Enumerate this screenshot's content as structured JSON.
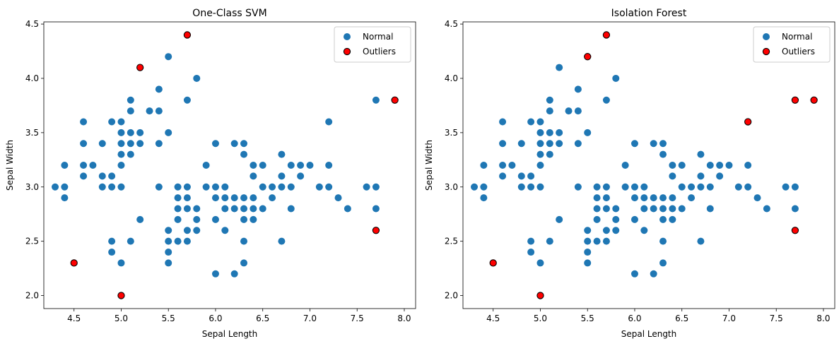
{
  "chart_data": [
    {
      "type": "scatter",
      "title": "One-Class SVM",
      "xlabel": "Sepal Length",
      "ylabel": "Sepal Width",
      "xlim": [
        4.18,
        8.12
      ],
      "ylim": [
        1.88,
        4.52
      ],
      "xticks": [
        4.5,
        5.0,
        5.5,
        6.0,
        6.5,
        7.0,
        7.5,
        8.0
      ],
      "xtick_labels": [
        "4.5",
        "5.0",
        "5.5",
        "6.0",
        "6.5",
        "7.0",
        "7.5",
        "8.0"
      ],
      "yticks": [
        2.0,
        2.5,
        3.0,
        3.5,
        4.0,
        4.5
      ],
      "ytick_labels": [
        "2.0",
        "2.5",
        "3.0",
        "3.5",
        "4.0",
        "4.5"
      ],
      "grid": false,
      "legend_position": "top-right",
      "series": [
        {
          "name": "Normal",
          "color": "#1f77b4",
          "points": [
            [
              4.3,
              3.0
            ],
            [
              4.4,
              3.2
            ],
            [
              4.4,
              3.0
            ],
            [
              4.4,
              2.9
            ],
            [
              4.6,
              3.6
            ],
            [
              4.6,
              3.4
            ],
            [
              4.6,
              3.2
            ],
            [
              4.6,
              3.1
            ],
            [
              4.7,
              3.2
            ],
            [
              4.8,
              3.4
            ],
            [
              4.8,
              3.1
            ],
            [
              4.8,
              3.0
            ],
            [
              4.9,
              3.6
            ],
            [
              4.9,
              3.1
            ],
            [
              4.9,
              3.0
            ],
            [
              4.9,
              2.5
            ],
            [
              4.9,
              2.4
            ],
            [
              5.0,
              3.6
            ],
            [
              5.0,
              3.5
            ],
            [
              5.0,
              3.4
            ],
            [
              5.0,
              3.3
            ],
            [
              5.0,
              3.2
            ],
            [
              5.0,
              3.0
            ],
            [
              5.0,
              2.3
            ],
            [
              5.1,
              3.8
            ],
            [
              5.1,
              3.7
            ],
            [
              5.1,
              3.5
            ],
            [
              5.1,
              3.4
            ],
            [
              5.1,
              3.3
            ],
            [
              5.1,
              2.5
            ],
            [
              5.2,
              3.5
            ],
            [
              5.2,
              3.4
            ],
            [
              5.2,
              2.7
            ],
            [
              5.3,
              3.7
            ],
            [
              5.4,
              3.9
            ],
            [
              5.4,
              3.7
            ],
            [
              5.4,
              3.4
            ],
            [
              5.4,
              3.0
            ],
            [
              5.5,
              4.2
            ],
            [
              5.5,
              3.5
            ],
            [
              5.5,
              2.6
            ],
            [
              5.5,
              2.5
            ],
            [
              5.5,
              2.4
            ],
            [
              5.5,
              2.3
            ],
            [
              5.6,
              3.0
            ],
            [
              5.6,
              2.9
            ],
            [
              5.6,
              2.8
            ],
            [
              5.6,
              2.7
            ],
            [
              5.6,
              2.5
            ],
            [
              5.7,
              3.8
            ],
            [
              5.7,
              3.0
            ],
            [
              5.7,
              2.9
            ],
            [
              5.7,
              2.8
            ],
            [
              5.7,
              2.6
            ],
            [
              5.7,
              2.5
            ],
            [
              5.8,
              4.0
            ],
            [
              5.8,
              2.8
            ],
            [
              5.8,
              2.7
            ],
            [
              5.8,
              2.6
            ],
            [
              5.9,
              3.2
            ],
            [
              5.9,
              3.0
            ],
            [
              6.0,
              3.4
            ],
            [
              6.0,
              3.0
            ],
            [
              6.0,
              2.9
            ],
            [
              6.0,
              2.7
            ],
            [
              6.0,
              2.2
            ],
            [
              6.1,
              3.0
            ],
            [
              6.1,
              2.9
            ],
            [
              6.1,
              2.8
            ],
            [
              6.1,
              2.6
            ],
            [
              6.2,
              3.4
            ],
            [
              6.2,
              2.9
            ],
            [
              6.2,
              2.8
            ],
            [
              6.2,
              2.2
            ],
            [
              6.3,
              3.4
            ],
            [
              6.3,
              3.3
            ],
            [
              6.3,
              2.9
            ],
            [
              6.3,
              2.8
            ],
            [
              6.3,
              2.7
            ],
            [
              6.3,
              2.5
            ],
            [
              6.3,
              2.3
            ],
            [
              6.4,
              3.2
            ],
            [
              6.4,
              3.1
            ],
            [
              6.4,
              2.9
            ],
            [
              6.4,
              2.8
            ],
            [
              6.4,
              2.7
            ],
            [
              6.5,
              3.2
            ],
            [
              6.5,
              3.0
            ],
            [
              6.5,
              2.8
            ],
            [
              6.6,
              3.0
            ],
            [
              6.6,
              2.9
            ],
            [
              6.7,
              3.3
            ],
            [
              6.7,
              3.1
            ],
            [
              6.7,
              3.0
            ],
            [
              6.7,
              2.5
            ],
            [
              6.8,
              3.2
            ],
            [
              6.8,
              3.0
            ],
            [
              6.8,
              2.8
            ],
            [
              6.9,
              3.2
            ],
            [
              6.9,
              3.1
            ],
            [
              7.0,
              3.2
            ],
            [
              7.1,
              3.0
            ],
            [
              7.2,
              3.6
            ],
            [
              7.2,
              3.2
            ],
            [
              7.2,
              3.0
            ],
            [
              7.3,
              2.9
            ],
            [
              7.4,
              2.8
            ],
            [
              7.6,
              3.0
            ],
            [
              7.7,
              3.8
            ],
            [
              7.7,
              3.0
            ],
            [
              7.7,
              2.8
            ]
          ]
        },
        {
          "name": "Outliers",
          "color": "#ff0000",
          "points": [
            [
              5.7,
              4.4
            ],
            [
              5.2,
              4.1
            ],
            [
              7.9,
              3.8
            ],
            [
              7.7,
              2.6
            ],
            [
              4.5,
              2.3
            ],
            [
              5.0,
              2.0
            ]
          ]
        }
      ]
    },
    {
      "type": "scatter",
      "title": "Isolation Forest",
      "xlabel": "Sepal Length",
      "ylabel": "Sepal Width",
      "xlim": [
        4.18,
        8.12
      ],
      "ylim": [
        1.88,
        4.52
      ],
      "xticks": [
        4.5,
        5.0,
        5.5,
        6.0,
        6.5,
        7.0,
        7.5,
        8.0
      ],
      "xtick_labels": [
        "4.5",
        "5.0",
        "5.5",
        "6.0",
        "6.5",
        "7.0",
        "7.5",
        "8.0"
      ],
      "yticks": [
        2.0,
        2.5,
        3.0,
        3.5,
        4.0,
        4.5
      ],
      "ytick_labels": [
        "2.0",
        "2.5",
        "3.0",
        "3.5",
        "4.0",
        "4.5"
      ],
      "grid": false,
      "legend_position": "top-right",
      "series": [
        {
          "name": "Normal",
          "color": "#1f77b4",
          "points": [
            [
              4.3,
              3.0
            ],
            [
              4.4,
              3.2
            ],
            [
              4.4,
              3.0
            ],
            [
              4.4,
              2.9
            ],
            [
              4.6,
              3.6
            ],
            [
              4.6,
              3.4
            ],
            [
              4.6,
              3.2
            ],
            [
              4.6,
              3.1
            ],
            [
              4.7,
              3.2
            ],
            [
              4.8,
              3.4
            ],
            [
              4.8,
              3.1
            ],
            [
              4.8,
              3.0
            ],
            [
              4.9,
              3.6
            ],
            [
              4.9,
              3.1
            ],
            [
              4.9,
              3.0
            ],
            [
              4.9,
              2.5
            ],
            [
              4.9,
              2.4
            ],
            [
              5.0,
              3.6
            ],
            [
              5.0,
              3.5
            ],
            [
              5.0,
              3.4
            ],
            [
              5.0,
              3.3
            ],
            [
              5.0,
              3.2
            ],
            [
              5.0,
              3.0
            ],
            [
              5.0,
              2.3
            ],
            [
              5.1,
              3.8
            ],
            [
              5.1,
              3.7
            ],
            [
              5.1,
              3.5
            ],
            [
              5.1,
              3.4
            ],
            [
              5.1,
              3.3
            ],
            [
              5.1,
              2.5
            ],
            [
              5.2,
              4.1
            ],
            [
              5.2,
              3.5
            ],
            [
              5.2,
              3.4
            ],
            [
              5.2,
              2.7
            ],
            [
              5.3,
              3.7
            ],
            [
              5.4,
              3.9
            ],
            [
              5.4,
              3.7
            ],
            [
              5.4,
              3.4
            ],
            [
              5.4,
              3.0
            ],
            [
              5.5,
              3.5
            ],
            [
              5.5,
              2.6
            ],
            [
              5.5,
              2.5
            ],
            [
              5.5,
              2.4
            ],
            [
              5.5,
              2.3
            ],
            [
              5.6,
              3.0
            ],
            [
              5.6,
              2.9
            ],
            [
              5.6,
              2.8
            ],
            [
              5.6,
              2.7
            ],
            [
              5.6,
              2.5
            ],
            [
              5.7,
              3.8
            ],
            [
              5.7,
              3.0
            ],
            [
              5.7,
              2.9
            ],
            [
              5.7,
              2.8
            ],
            [
              5.7,
              2.6
            ],
            [
              5.7,
              2.5
            ],
            [
              5.8,
              4.0
            ],
            [
              5.8,
              2.8
            ],
            [
              5.8,
              2.7
            ],
            [
              5.8,
              2.6
            ],
            [
              5.9,
              3.2
            ],
            [
              5.9,
              3.0
            ],
            [
              6.0,
              3.4
            ],
            [
              6.0,
              3.0
            ],
            [
              6.0,
              2.9
            ],
            [
              6.0,
              2.7
            ],
            [
              6.0,
              2.2
            ],
            [
              6.1,
              3.0
            ],
            [
              6.1,
              2.9
            ],
            [
              6.1,
              2.8
            ],
            [
              6.1,
              2.6
            ],
            [
              6.2,
              3.4
            ],
            [
              6.2,
              2.9
            ],
            [
              6.2,
              2.8
            ],
            [
              6.2,
              2.2
            ],
            [
              6.3,
              3.4
            ],
            [
              6.3,
              3.3
            ],
            [
              6.3,
              2.9
            ],
            [
              6.3,
              2.8
            ],
            [
              6.3,
              2.7
            ],
            [
              6.3,
              2.5
            ],
            [
              6.3,
              2.3
            ],
            [
              6.4,
              3.2
            ],
            [
              6.4,
              3.1
            ],
            [
              6.4,
              2.9
            ],
            [
              6.4,
              2.8
            ],
            [
              6.4,
              2.7
            ],
            [
              6.5,
              3.2
            ],
            [
              6.5,
              3.0
            ],
            [
              6.5,
              2.8
            ],
            [
              6.6,
              3.0
            ],
            [
              6.6,
              2.9
            ],
            [
              6.7,
              3.3
            ],
            [
              6.7,
              3.1
            ],
            [
              6.7,
              3.0
            ],
            [
              6.7,
              2.5
            ],
            [
              6.8,
              3.2
            ],
            [
              6.8,
              3.0
            ],
            [
              6.8,
              2.8
            ],
            [
              6.9,
              3.2
            ],
            [
              6.9,
              3.1
            ],
            [
              7.0,
              3.2
            ],
            [
              7.1,
              3.0
            ],
            [
              7.2,
              3.2
            ],
            [
              7.2,
              3.0
            ],
            [
              7.3,
              2.9
            ],
            [
              7.4,
              2.8
            ],
            [
              7.6,
              3.0
            ],
            [
              7.7,
              3.0
            ],
            [
              7.7,
              2.8
            ]
          ]
        },
        {
          "name": "Outliers",
          "color": "#ff0000",
          "points": [
            [
              5.7,
              4.4
            ],
            [
              5.5,
              4.2
            ],
            [
              7.2,
              3.6
            ],
            [
              7.7,
              3.8
            ],
            [
              7.9,
              3.8
            ],
            [
              7.7,
              2.6
            ],
            [
              4.5,
              2.3
            ],
            [
              5.0,
              2.0
            ]
          ]
        }
      ]
    }
  ]
}
